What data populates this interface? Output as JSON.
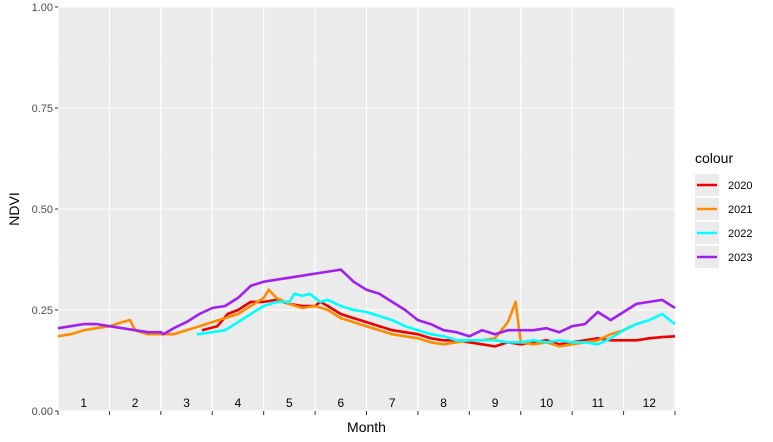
{
  "chart_data": {
    "type": "line",
    "xlabel": "Month",
    "ylabel": "NDVI",
    "xlim": [
      0.5,
      12.5
    ],
    "ylim": [
      0,
      1
    ],
    "y_ticks": [
      "0.00",
      "0.25",
      "0.50",
      "0.75",
      "1.00"
    ],
    "y_tick_values": [
      0,
      0.25,
      0.5,
      0.75,
      1.0
    ],
    "month_labels": [
      "1",
      "2",
      "3",
      "4",
      "5",
      "6",
      "7",
      "8",
      "9",
      "10",
      "11",
      "12"
    ],
    "grid": true,
    "legend": {
      "title": "colour",
      "position": "right"
    },
    "series": [
      {
        "name": "2020",
        "color": "#ee0000",
        "points": [
          [
            3.3,
            0.2
          ],
          [
            3.6,
            0.21
          ],
          [
            3.8,
            0.24
          ],
          [
            4.0,
            0.25
          ],
          [
            4.25,
            0.27
          ],
          [
            4.5,
            0.27
          ],
          [
            4.75,
            0.275
          ],
          [
            5.0,
            0.265
          ],
          [
            5.25,
            0.26
          ],
          [
            5.5,
            0.26
          ],
          [
            5.6,
            0.27
          ],
          [
            5.75,
            0.26
          ],
          [
            6.0,
            0.24
          ],
          [
            6.25,
            0.23
          ],
          [
            6.5,
            0.22
          ],
          [
            6.75,
            0.21
          ],
          [
            7.0,
            0.2
          ],
          [
            7.25,
            0.195
          ],
          [
            7.5,
            0.19
          ],
          [
            7.75,
            0.18
          ],
          [
            8.0,
            0.175
          ],
          [
            8.25,
            0.175
          ],
          [
            8.5,
            0.17
          ],
          [
            8.75,
            0.165
          ],
          [
            9.0,
            0.16
          ],
          [
            9.25,
            0.17
          ],
          [
            9.5,
            0.165
          ],
          [
            9.75,
            0.17
          ],
          [
            10.0,
            0.175
          ],
          [
            10.25,
            0.165
          ],
          [
            10.5,
            0.17
          ],
          [
            10.75,
            0.175
          ],
          [
            11.0,
            0.18
          ],
          [
            11.25,
            0.175
          ],
          [
            11.5,
            0.175
          ],
          [
            11.75,
            0.175
          ],
          [
            12.0,
            0.18
          ],
          [
            12.25,
            0.183
          ],
          [
            12.5,
            0.185
          ]
        ]
      },
      {
        "name": "2021",
        "color": "#ff8c00",
        "points": [
          [
            0.5,
            0.185
          ],
          [
            0.75,
            0.19
          ],
          [
            1.0,
            0.2
          ],
          [
            1.25,
            0.205
          ],
          [
            1.5,
            0.21
          ],
          [
            1.75,
            0.22
          ],
          [
            1.9,
            0.225
          ],
          [
            2.0,
            0.2
          ],
          [
            2.25,
            0.19
          ],
          [
            2.5,
            0.19
          ],
          [
            2.75,
            0.19
          ],
          [
            3.0,
            0.2
          ],
          [
            3.25,
            0.21
          ],
          [
            3.5,
            0.22
          ],
          [
            3.75,
            0.23
          ],
          [
            4.0,
            0.24
          ],
          [
            4.25,
            0.26
          ],
          [
            4.5,
            0.28
          ],
          [
            4.6,
            0.3
          ],
          [
            4.75,
            0.28
          ],
          [
            5.0,
            0.265
          ],
          [
            5.25,
            0.255
          ],
          [
            5.5,
            0.26
          ],
          [
            5.75,
            0.25
          ],
          [
            6.0,
            0.23
          ],
          [
            6.25,
            0.22
          ],
          [
            6.5,
            0.21
          ],
          [
            6.75,
            0.2
          ],
          [
            7.0,
            0.19
          ],
          [
            7.25,
            0.185
          ],
          [
            7.5,
            0.18
          ],
          [
            7.75,
            0.17
          ],
          [
            8.0,
            0.165
          ],
          [
            8.25,
            0.17
          ],
          [
            8.5,
            0.175
          ],
          [
            8.75,
            0.175
          ],
          [
            9.0,
            0.18
          ],
          [
            9.25,
            0.22
          ],
          [
            9.4,
            0.27
          ],
          [
            9.5,
            0.17
          ],
          [
            9.75,
            0.165
          ],
          [
            10.0,
            0.17
          ],
          [
            10.25,
            0.16
          ],
          [
            10.5,
            0.165
          ],
          [
            10.75,
            0.17
          ],
          [
            11.0,
            0.175
          ],
          [
            11.25,
            0.19
          ],
          [
            11.5,
            0.2
          ],
          [
            11.65,
            0.21
          ]
        ]
      },
      {
        "name": "2022",
        "color": "#00ffff",
        "points": [
          [
            3.2,
            0.19
          ],
          [
            3.5,
            0.195
          ],
          [
            3.75,
            0.2
          ],
          [
            4.0,
            0.22
          ],
          [
            4.25,
            0.24
          ],
          [
            4.5,
            0.26
          ],
          [
            4.75,
            0.27
          ],
          [
            5.0,
            0.27
          ],
          [
            5.1,
            0.29
          ],
          [
            5.25,
            0.285
          ],
          [
            5.4,
            0.29
          ],
          [
            5.6,
            0.27
          ],
          [
            5.75,
            0.275
          ],
          [
            6.0,
            0.26
          ],
          [
            6.25,
            0.25
          ],
          [
            6.5,
            0.245
          ],
          [
            6.75,
            0.235
          ],
          [
            7.0,
            0.225
          ],
          [
            7.25,
            0.21
          ],
          [
            7.5,
            0.2
          ],
          [
            7.75,
            0.19
          ],
          [
            8.0,
            0.185
          ],
          [
            8.25,
            0.175
          ],
          [
            8.5,
            0.175
          ],
          [
            8.75,
            0.175
          ],
          [
            9.0,
            0.175
          ],
          [
            9.25,
            0.17
          ],
          [
            9.5,
            0.17
          ],
          [
            9.75,
            0.175
          ],
          [
            10.0,
            0.17
          ],
          [
            10.25,
            0.175
          ],
          [
            10.5,
            0.17
          ],
          [
            10.75,
            0.17
          ],
          [
            11.0,
            0.165
          ],
          [
            11.25,
            0.18
          ],
          [
            11.5,
            0.2
          ],
          [
            11.75,
            0.215
          ],
          [
            12.0,
            0.225
          ],
          [
            12.25,
            0.24
          ],
          [
            12.5,
            0.215
          ]
        ]
      },
      {
        "name": "2023",
        "color": "#a020f0",
        "points": [
          [
            0.5,
            0.205
          ],
          [
            0.75,
            0.21
          ],
          [
            1.0,
            0.215
          ],
          [
            1.25,
            0.215
          ],
          [
            1.5,
            0.21
          ],
          [
            1.75,
            0.205
          ],
          [
            2.0,
            0.2
          ],
          [
            2.25,
            0.195
          ],
          [
            2.5,
            0.195
          ],
          [
            2.55,
            0.19
          ],
          [
            2.75,
            0.205
          ],
          [
            3.0,
            0.22
          ],
          [
            3.25,
            0.24
          ],
          [
            3.5,
            0.255
          ],
          [
            3.75,
            0.26
          ],
          [
            4.0,
            0.28
          ],
          [
            4.25,
            0.31
          ],
          [
            4.5,
            0.32
          ],
          [
            4.75,
            0.325
          ],
          [
            5.0,
            0.33
          ],
          [
            5.25,
            0.335
          ],
          [
            5.5,
            0.34
          ],
          [
            5.75,
            0.345
          ],
          [
            6.0,
            0.35
          ],
          [
            6.25,
            0.32
          ],
          [
            6.5,
            0.3
          ],
          [
            6.75,
            0.29
          ],
          [
            7.0,
            0.27
          ],
          [
            7.25,
            0.25
          ],
          [
            7.5,
            0.225
          ],
          [
            7.75,
            0.215
          ],
          [
            8.0,
            0.2
          ],
          [
            8.25,
            0.195
          ],
          [
            8.5,
            0.185
          ],
          [
            8.75,
            0.2
          ],
          [
            9.0,
            0.19
          ],
          [
            9.25,
            0.2
          ],
          [
            9.5,
            0.2
          ],
          [
            9.75,
            0.2
          ],
          [
            10.0,
            0.205
          ],
          [
            10.25,
            0.195
          ],
          [
            10.5,
            0.21
          ],
          [
            10.75,
            0.215
          ],
          [
            11.0,
            0.245
          ],
          [
            11.25,
            0.225
          ],
          [
            11.5,
            0.245
          ],
          [
            11.75,
            0.265
          ],
          [
            12.0,
            0.27
          ],
          [
            12.25,
            0.275
          ],
          [
            12.5,
            0.255
          ]
        ]
      }
    ]
  }
}
